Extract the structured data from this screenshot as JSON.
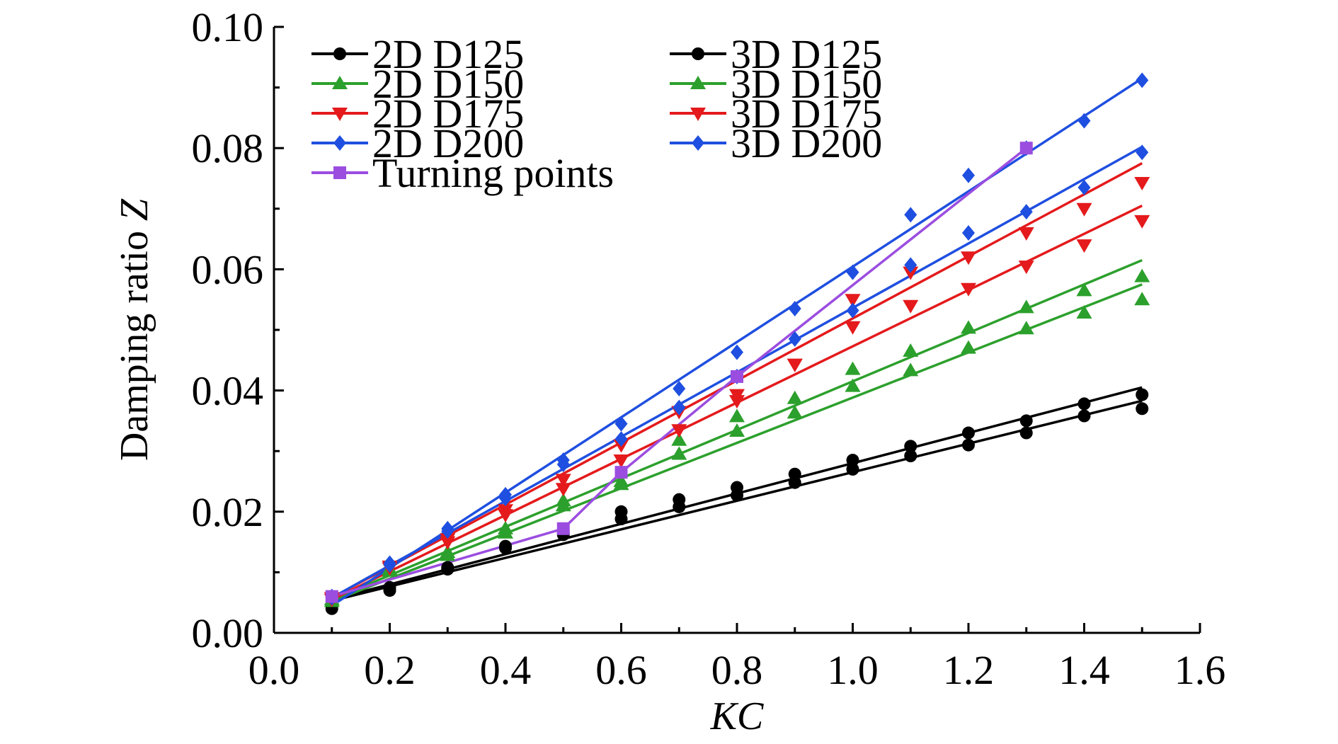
{
  "chart_data": {
    "type": "line",
    "title": "",
    "xlabel": "KC",
    "ylabel_prefix": "Damping ratio ",
    "ylabel_var": "Z",
    "xlim": [
      0.0,
      1.6
    ],
    "ylim": [
      0.0,
      0.1
    ],
    "xticks": [
      "0.0",
      "0.2",
      "0.4",
      "0.6",
      "0.8",
      "1.0",
      "1.2",
      "1.4",
      "1.6"
    ],
    "yticks": [
      "0.00",
      "0.02",
      "0.04",
      "0.06",
      "0.08",
      "0.10"
    ],
    "grid": false,
    "legend_position": "top-left",
    "series": [
      {
        "name": "2D D125",
        "color": "#000000",
        "marker": "circle",
        "x": [
          0.1,
          0.2,
          0.3,
          0.4,
          0.5,
          0.6,
          0.7,
          0.8,
          0.9,
          1.0,
          1.1,
          1.2,
          1.3,
          1.4,
          1.5
        ],
        "y": [
          0.0045,
          0.0075,
          0.0108,
          0.0143,
          0.0165,
          0.02,
          0.022,
          0.024,
          0.0262,
          0.0285,
          0.0308,
          0.033,
          0.035,
          0.0378,
          0.0393
        ],
        "fit": [
          0.0055,
          0.0405
        ]
      },
      {
        "name": "3D D125",
        "color": "#000000",
        "marker": "circle",
        "x": [
          0.1,
          0.2,
          0.3,
          0.4,
          0.5,
          0.6,
          0.7,
          0.8,
          0.9,
          1.0,
          1.1,
          1.2,
          1.3,
          1.4,
          1.5
        ],
        "y": [
          0.004,
          0.007,
          0.0105,
          0.014,
          0.0162,
          0.0188,
          0.0208,
          0.0227,
          0.0248,
          0.027,
          0.0292,
          0.031,
          0.033,
          0.0358,
          0.037
        ],
        "fit": [
          0.0053,
          0.0383
        ]
      },
      {
        "name": "2D D150",
        "color": "#2ca02c",
        "marker": "triangle-up",
        "x": [
          0.1,
          0.2,
          0.3,
          0.4,
          0.5,
          0.6,
          0.7,
          0.8,
          0.9,
          1.0,
          1.1,
          1.2,
          1.3,
          1.4,
          1.5
        ],
        "y": [
          0.0055,
          0.0105,
          0.0133,
          0.0172,
          0.0218,
          0.025,
          0.0318,
          0.0357,
          0.0387,
          0.0435,
          0.0465,
          0.0503,
          0.0537,
          0.0565,
          0.0588
        ],
        "fit": [
          0.0055,
          0.0615
        ]
      },
      {
        "name": "3D D150",
        "color": "#2ca02c",
        "marker": "triangle-up",
        "x": [
          0.1,
          0.2,
          0.3,
          0.4,
          0.5,
          0.6,
          0.7,
          0.8,
          0.9,
          1.0,
          1.1,
          1.2,
          1.3,
          1.4,
          1.5
        ],
        "y": [
          0.0052,
          0.0102,
          0.0128,
          0.0165,
          0.021,
          0.0245,
          0.0295,
          0.0333,
          0.0363,
          0.0407,
          0.0433,
          0.047,
          0.0502,
          0.0528,
          0.055
        ],
        "fit": [
          0.0052,
          0.0575
        ]
      },
      {
        "name": "2D D175",
        "color": "#e41a1c",
        "marker": "triangle-down",
        "x": [
          0.1,
          0.2,
          0.3,
          0.4,
          0.5,
          0.6,
          0.7,
          0.8,
          0.9,
          1.0,
          1.1,
          1.2,
          1.3,
          1.4,
          1.5
        ],
        "y": [
          0.0058,
          0.011,
          0.0155,
          0.0203,
          0.0253,
          0.031,
          0.0365,
          0.0393,
          0.0443,
          0.055,
          0.0595,
          0.062,
          0.066,
          0.07,
          0.0743
        ],
        "fit": [
          0.0058,
          0.0775
        ]
      },
      {
        "name": "3D D175",
        "color": "#e41a1c",
        "marker": "triangle-down",
        "x": [
          0.1,
          0.2,
          0.3,
          0.4,
          0.5,
          0.6,
          0.7,
          0.8,
          0.9,
          1.0,
          1.1,
          1.2,
          1.3,
          1.4,
          1.5
        ],
        "y": [
          0.0055,
          0.0107,
          0.015,
          0.0195,
          0.0238,
          0.0285,
          0.0335,
          0.0383,
          0.0443,
          0.0505,
          0.054,
          0.0568,
          0.0605,
          0.064,
          0.068
        ],
        "fit": [
          0.0055,
          0.0705
        ]
      },
      {
        "name": "2D D200",
        "color": "#1f4fe0",
        "marker": "diamond",
        "x": [
          0.1,
          0.2,
          0.3,
          0.4,
          0.5,
          0.6,
          0.7,
          0.8,
          0.9,
          1.0,
          1.1,
          1.2,
          1.3,
          1.4,
          1.5
        ],
        "y": [
          0.006,
          0.0115,
          0.0172,
          0.0228,
          0.0285,
          0.0345,
          0.0403,
          0.0463,
          0.0535,
          0.0595,
          0.069,
          0.0755,
          0.08,
          0.0845,
          0.0912
        ],
        "fit": [
          0.0045,
          0.0915
        ]
      },
      {
        "name": "3D D200",
        "color": "#1f4fe0",
        "marker": "diamond",
        "x": [
          0.1,
          0.2,
          0.3,
          0.4,
          0.5,
          0.6,
          0.7,
          0.8,
          0.9,
          1.0,
          1.1,
          1.2,
          1.3,
          1.4,
          1.5
        ],
        "y": [
          0.0058,
          0.0112,
          0.0168,
          0.0222,
          0.0278,
          0.032,
          0.0372,
          0.0423,
          0.0485,
          0.0532,
          0.0607,
          0.066,
          0.0695,
          0.0735,
          0.0793
        ],
        "fit": [
          0.0058,
          0.0802
        ]
      },
      {
        "name": "Turning points",
        "color": "#9b4de0",
        "marker": "square",
        "x": [
          0.1,
          0.5,
          0.6,
          0.8,
          1.3
        ],
        "y": [
          0.006,
          0.0172,
          0.0265,
          0.0423,
          0.08
        ],
        "connect": true
      }
    ]
  }
}
